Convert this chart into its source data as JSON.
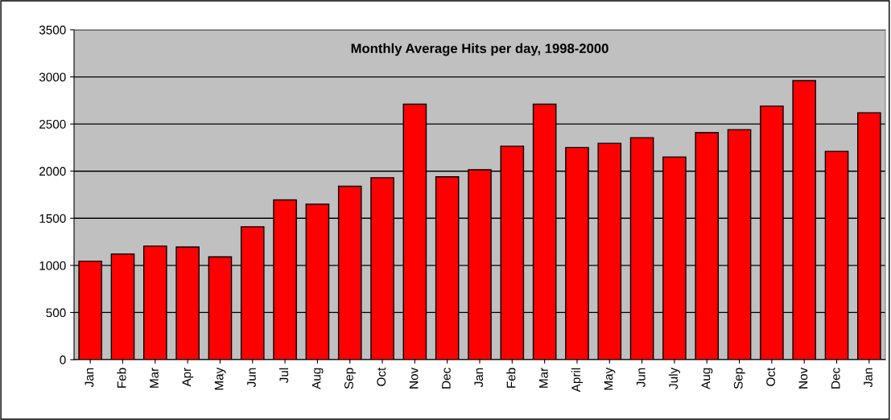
{
  "chart_data": {
    "type": "bar",
    "title": "Monthly Average Hits per day, 1998-2000",
    "categories": [
      "Jan",
      "Feb",
      "Mar",
      "Apr",
      "May",
      "Jun",
      "Jul",
      "Aug",
      "Sep",
      "Oct",
      "Nov",
      "Dec",
      "Jan",
      "Feb",
      "Mar",
      "April",
      "May",
      "Jun",
      "July",
      "Aug",
      "Sep",
      "Oct",
      "Nov",
      "Dec",
      "Jan"
    ],
    "values": [
      1045,
      1120,
      1205,
      1195,
      1090,
      1410,
      1695,
      1650,
      1840,
      1930,
      2710,
      1940,
      2015,
      2265,
      2710,
      2250,
      2295,
      2355,
      2150,
      2410,
      2440,
      2690,
      2960,
      2210,
      2620
    ],
    "color": "#ff0000",
    "ylim": [
      0,
      3500
    ],
    "yticks": [
      0,
      500,
      1000,
      1500,
      2000,
      2500,
      3000,
      3500
    ],
    "grid": "y"
  }
}
